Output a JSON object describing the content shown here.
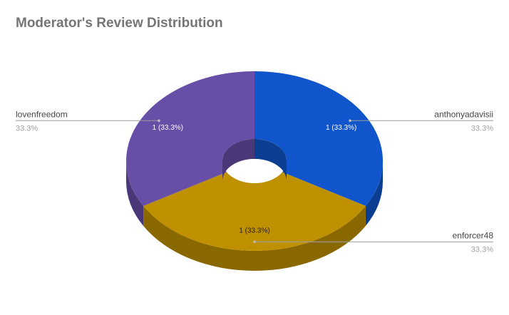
{
  "chart_data": {
    "type": "pie",
    "variant": "3d-donut",
    "title": "Moderator's Review Distribution",
    "slices": [
      {
        "name": "anthonyadavisii",
        "value": 1,
        "label": "1 (33.3%)",
        "percent": "33.3%",
        "color": "#1155cc",
        "side_color": "#0b3d91",
        "label_color": "#ffffff"
      },
      {
        "name": "enforcer48",
        "value": 1,
        "label": "1 (33.3%)",
        "percent": "33.3%",
        "color": "#bf9000",
        "side_color": "#8a6800",
        "label_color": "#212121"
      },
      {
        "name": "lovenfreedom",
        "value": 1,
        "label": "1 (33.3%)",
        "percent": "33.3%",
        "color": "#674ea7",
        "side_color": "#4a3778",
        "label_color": "#ffffff"
      }
    ],
    "legend": "labeled-outside"
  }
}
